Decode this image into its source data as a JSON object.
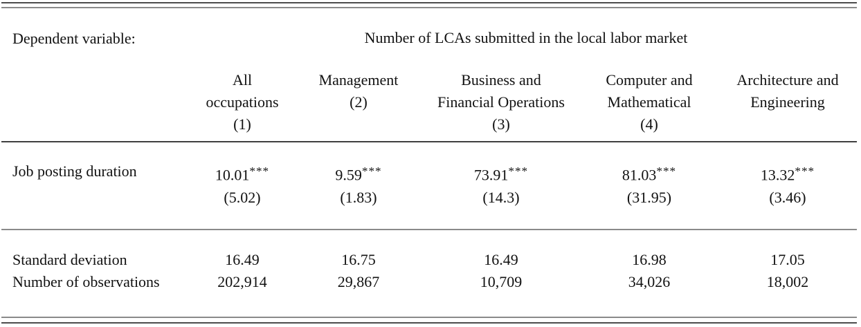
{
  "table": {
    "dependent_variable_label": "Dependent variable:",
    "dependent_variable_value": "Number of LCAs submitted in the local labor market",
    "columns": [
      {
        "line1": "All",
        "line2": "occupations",
        "number": "(1)"
      },
      {
        "line1": "Management",
        "line2": "",
        "number": "(2)"
      },
      {
        "line1": "Business and",
        "line2": "Financial Operations",
        "number": "(3)"
      },
      {
        "line1": "Computer and",
        "line2": "Mathematical",
        "number": "(4)"
      },
      {
        "line1": "Architecture and",
        "line2": "Engineering",
        "number": ""
      }
    ],
    "coefficient_row": {
      "label": "Job posting duration",
      "values": [
        {
          "coef": "10.01",
          "stars": "***",
          "se": "(5.02)"
        },
        {
          "coef": "9.59",
          "stars": "***",
          "se": "(1.83)"
        },
        {
          "coef": "73.91",
          "stars": "***",
          "se": "(14.3)"
        },
        {
          "coef": "81.03",
          "stars": "***",
          "se": "(31.95)"
        },
        {
          "coef": "13.32",
          "stars": "***",
          "se": "(3.46)"
        }
      ]
    },
    "summary_rows": [
      {
        "label": "Standard deviation",
        "values": [
          "16.49",
          "16.75",
          "16.49",
          "16.98",
          "17.05"
        ]
      },
      {
        "label": "Number of observations",
        "values": [
          "202,914",
          "29,867",
          "10,709",
          "34,026",
          "18,002"
        ]
      }
    ]
  },
  "colors": {
    "text": "#111111",
    "rule_dark": "#4c4c4c",
    "rule_light": "#8a8a8a",
    "background": "#ffffff"
  }
}
